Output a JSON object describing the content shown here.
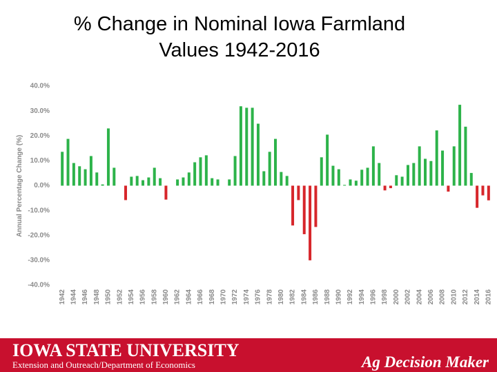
{
  "chart_data": {
    "type": "bar",
    "title": "% Change in Nominal Iowa Farmland Values 1942-2016",
    "y_label": "Annual Percentage Change (%)",
    "categories": [
      "1942",
      null,
      "1944",
      null,
      "1946",
      null,
      "1948",
      null,
      "1950",
      null,
      "1952",
      null,
      "1954",
      null,
      "1956",
      null,
      "1958",
      null,
      "1960",
      null,
      "1962",
      null,
      "1964",
      null,
      "1966",
      null,
      "1968",
      null,
      "1970",
      null,
      "1972",
      null,
      "1974",
      null,
      "1976",
      null,
      "1978",
      null,
      "1980",
      null,
      "1982",
      null,
      "1984",
      null,
      "1986",
      null,
      "1988",
      null,
      "1990",
      null,
      "1992",
      null,
      "1994",
      null,
      "1996",
      null,
      "1998",
      null,
      "2000",
      null,
      "2002",
      null,
      "2004",
      null,
      "2006",
      null,
      "2008",
      null,
      "2010",
      null,
      "2012",
      null,
      "2014",
      null,
      "2016"
    ],
    "values": [
      13.6,
      18.8,
      9.1,
      7.8,
      6.6,
      11.9,
      5.3,
      0.5,
      23.0,
      7.2,
      0,
      -5.8,
      3.6,
      3.9,
      2.2,
      3.3,
      7.2,
      3.0,
      -5.6,
      0,
      2.5,
      3.3,
      5.3,
      9.4,
      11.4,
      12.2,
      3.0,
      2.5,
      0,
      2.5,
      11.9,
      31.9,
      31.3,
      31.3,
      24.9,
      5.8,
      13.6,
      18.8,
      5.5,
      3.9,
      -16.0,
      -5.8,
      -19.5,
      -30.0,
      -16.6,
      11.4,
      20.5,
      8.0,
      6.6,
      0.3,
      2.5,
      2.0,
      6.4,
      7.2,
      15.8,
      9.1,
      -1.9,
      -1.0,
      4.2,
      3.6,
      8.3,
      9.1,
      15.8,
      10.8,
      9.9,
      22.2,
      14.1,
      -2.4,
      15.8,
      32.5,
      23.7,
      5.1,
      -8.9,
      -3.9,
      -5.9
    ],
    "positive_color": "#2db34a",
    "negative_color": "#d7262b",
    "ylim": [
      -40,
      40
    ],
    "yticks": [
      {
        "value": 40,
        "label": "40.0%"
      },
      {
        "value": 30,
        "label": "30.0%"
      },
      {
        "value": 20,
        "label": "20.0%"
      },
      {
        "value": 10,
        "label": "10.0%"
      },
      {
        "value": 0,
        "label": "0.0%"
      },
      {
        "value": -10,
        "label": "-10.0%"
      },
      {
        "value": -20,
        "label": "-20.0%"
      },
      {
        "value": -30,
        "label": "-30.0%"
      },
      {
        "value": -40,
        "label": "-40.0%"
      }
    ],
    "grid": false
  },
  "footer": {
    "university": "IOWA STATE UNIVERSITY",
    "department": "Extension and Outreach/Department of Economics",
    "program": "Ag Decision Maker"
  }
}
